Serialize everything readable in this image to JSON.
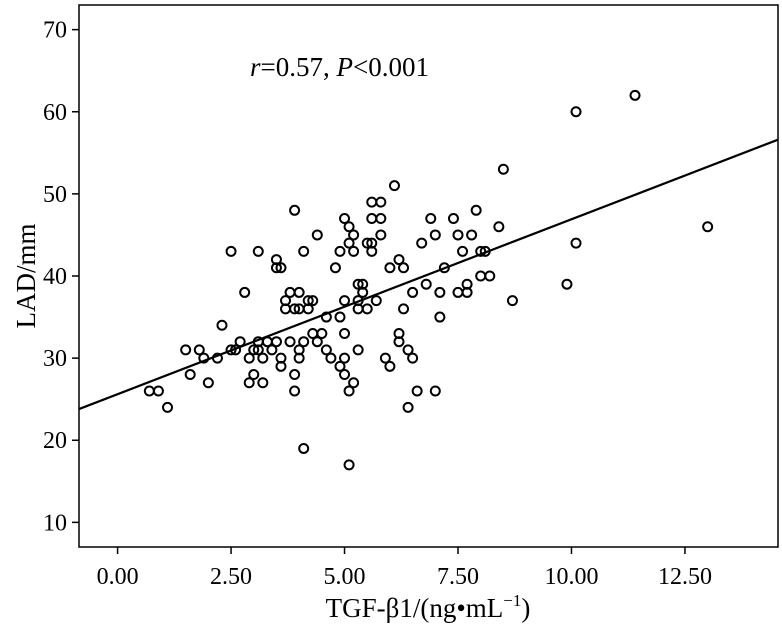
{
  "chart_data": {
    "type": "scatter",
    "annotation": {
      "r_symbol": "r",
      "r_value": "=0.57, ",
      "p_symbol": "P",
      "p_value": "<0.001"
    },
    "xlabel": {
      "text": "TGF-β1/(ng•mL",
      "sup": "−1",
      "close": ")"
    },
    "ylabel": "LAD/mm",
    "xlim": [
      -0.85,
      14.55
    ],
    "ylim": [
      7,
      73
    ],
    "xticks": [
      0.0,
      2.5,
      5.0,
      7.5,
      10.0,
      12.5
    ],
    "xtick_labels": [
      "0.00",
      "2.50",
      "5.00",
      "7.50",
      "10.00",
      "12.50"
    ],
    "yticks": [
      10,
      20,
      30,
      40,
      50,
      60,
      70
    ],
    "ytick_labels": [
      "10",
      "20",
      "30",
      "40",
      "50",
      "60",
      "70"
    ],
    "grid": false,
    "regression_line": {
      "x": [
        -0.85,
        14.55
      ],
      "y": [
        23.8,
        56.6
      ]
    },
    "points": [
      [
        0.7,
        26
      ],
      [
        0.9,
        26
      ],
      [
        1.1,
        24
      ],
      [
        1.5,
        31
      ],
      [
        1.6,
        28
      ],
      [
        1.8,
        31
      ],
      [
        1.9,
        30
      ],
      [
        2.0,
        27
      ],
      [
        2.2,
        30
      ],
      [
        2.3,
        34
      ],
      [
        2.5,
        31
      ],
      [
        2.5,
        43
      ],
      [
        2.6,
        31
      ],
      [
        2.7,
        32
      ],
      [
        2.8,
        38
      ],
      [
        2.9,
        30
      ],
      [
        2.9,
        27
      ],
      [
        3.0,
        31
      ],
      [
        3.0,
        28
      ],
      [
        3.1,
        31
      ],
      [
        3.1,
        32
      ],
      [
        3.2,
        30
      ],
      [
        3.2,
        27
      ],
      [
        3.3,
        32
      ],
      [
        3.4,
        31
      ],
      [
        3.1,
        43
      ],
      [
        3.5,
        32
      ],
      [
        3.5,
        42
      ],
      [
        3.5,
        41
      ],
      [
        3.6,
        41
      ],
      [
        3.6,
        30
      ],
      [
        3.6,
        29
      ],
      [
        3.7,
        37
      ],
      [
        3.7,
        36
      ],
      [
        3.8,
        32
      ],
      [
        3.8,
        38
      ],
      [
        3.9,
        36
      ],
      [
        3.9,
        28
      ],
      [
        3.9,
        26
      ],
      [
        3.9,
        48
      ],
      [
        4.0,
        30
      ],
      [
        4.0,
        31
      ],
      [
        4.0,
        38
      ],
      [
        4.0,
        36
      ],
      [
        4.1,
        43
      ],
      [
        4.1,
        32
      ],
      [
        4.1,
        19
      ],
      [
        4.2,
        37
      ],
      [
        4.2,
        36
      ],
      [
        4.3,
        33
      ],
      [
        4.3,
        37
      ],
      [
        4.4,
        45
      ],
      [
        4.4,
        32
      ],
      [
        4.5,
        33
      ],
      [
        4.6,
        35
      ],
      [
        4.6,
        31
      ],
      [
        4.7,
        30
      ],
      [
        4.8,
        41
      ],
      [
        4.9,
        35
      ],
      [
        4.9,
        43
      ],
      [
        4.9,
        29
      ],
      [
        5.0,
        47
      ],
      [
        5.0,
        37
      ],
      [
        5.0,
        33
      ],
      [
        5.0,
        30
      ],
      [
        5.0,
        28
      ],
      [
        5.1,
        44
      ],
      [
        5.1,
        46
      ],
      [
        5.1,
        26
      ],
      [
        5.1,
        17
      ],
      [
        5.2,
        45
      ],
      [
        5.2,
        43
      ],
      [
        5.2,
        27
      ],
      [
        5.3,
        31
      ],
      [
        5.3,
        39
      ],
      [
        5.3,
        37
      ],
      [
        5.3,
        36
      ],
      [
        5.4,
        39
      ],
      [
        5.4,
        38
      ],
      [
        5.5,
        44
      ],
      [
        5.5,
        36
      ],
      [
        5.6,
        47
      ],
      [
        5.6,
        43
      ],
      [
        5.6,
        44
      ],
      [
        5.6,
        49
      ],
      [
        5.7,
        37
      ],
      [
        5.8,
        49
      ],
      [
        5.8,
        47
      ],
      [
        5.8,
        45
      ],
      [
        5.9,
        30
      ],
      [
        6.0,
        41
      ],
      [
        6.0,
        29
      ],
      [
        6.1,
        51
      ],
      [
        6.2,
        42
      ],
      [
        6.2,
        32
      ],
      [
        6.2,
        33
      ],
      [
        6.3,
        41
      ],
      [
        6.3,
        36
      ],
      [
        6.4,
        31
      ],
      [
        6.4,
        24
      ],
      [
        6.5,
        30
      ],
      [
        6.5,
        38
      ],
      [
        6.6,
        26
      ],
      [
        6.7,
        44
      ],
      [
        6.8,
        39
      ],
      [
        6.9,
        47
      ],
      [
        7.0,
        26
      ],
      [
        7.0,
        45
      ],
      [
        7.1,
        38
      ],
      [
        7.1,
        35
      ],
      [
        7.2,
        41
      ],
      [
        7.4,
        47
      ],
      [
        7.5,
        38
      ],
      [
        7.5,
        45
      ],
      [
        7.6,
        43
      ],
      [
        7.7,
        38
      ],
      [
        7.7,
        39
      ],
      [
        7.8,
        45
      ],
      [
        7.9,
        48
      ],
      [
        8.0,
        40
      ],
      [
        8.0,
        43
      ],
      [
        8.1,
        43
      ],
      [
        8.2,
        40
      ],
      [
        8.4,
        46
      ],
      [
        8.5,
        53
      ],
      [
        8.7,
        37
      ],
      [
        9.9,
        39
      ],
      [
        10.1,
        44
      ],
      [
        10.1,
        60
      ],
      [
        11.4,
        62
      ],
      [
        13.0,
        46
      ]
    ]
  }
}
